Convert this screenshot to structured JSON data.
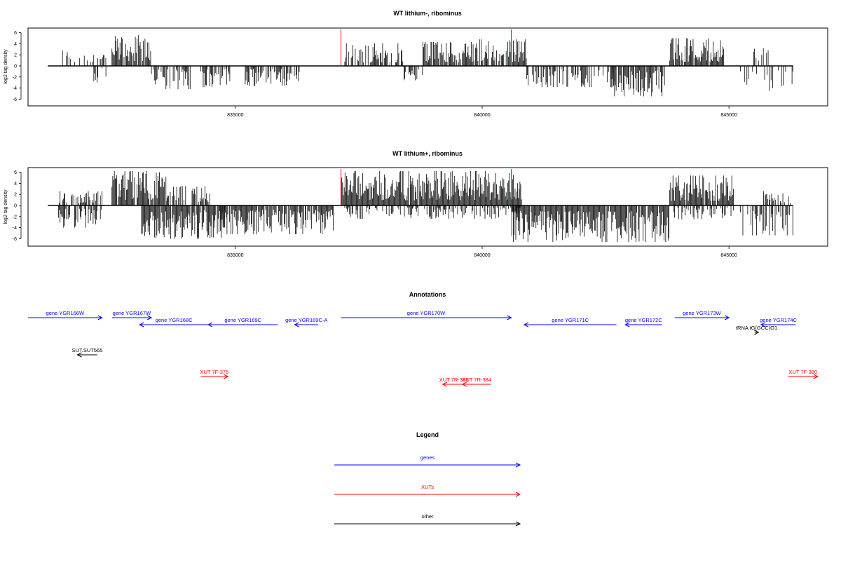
{
  "chart_data": [
    {
      "type": "bar",
      "title": "WT lithium-, ribominus",
      "ylabel": "log2 tag density",
      "xlim": [
        830800,
        847000
      ],
      "ylim": [
        -6.5,
        6.5
      ],
      "xticks": [
        "835000",
        "840000",
        "845000"
      ],
      "yticks": [
        "6",
        "4",
        "2",
        "0",
        "-2",
        "-4",
        "-6"
      ],
      "markers": [
        837140,
        840590
      ],
      "segments": [
        {
          "start": 831400,
          "end": 832000,
          "sign": 1,
          "max": 3.2,
          "density": 0.3
        },
        {
          "start": 832000,
          "end": 832400,
          "sign": 1,
          "max": 2.5,
          "density": 0.4
        },
        {
          "start": 832100,
          "end": 832400,
          "sign": -1,
          "max": 3.0,
          "density": 0.5
        },
        {
          "start": 832500,
          "end": 833300,
          "sign": 1,
          "max": 5.6,
          "density": 0.9
        },
        {
          "start": 833300,
          "end": 834100,
          "sign": -1,
          "max": 4.2,
          "density": 0.7
        },
        {
          "start": 834300,
          "end": 834900,
          "sign": -1,
          "max": 3.8,
          "density": 0.7
        },
        {
          "start": 835200,
          "end": 836300,
          "sign": -1,
          "max": 3.6,
          "density": 0.8
        },
        {
          "start": 837200,
          "end": 838400,
          "sign": 1,
          "max": 4.1,
          "density": 0.6
        },
        {
          "start": 838400,
          "end": 838800,
          "sign": -1,
          "max": 2.6,
          "density": 0.4
        },
        {
          "start": 838800,
          "end": 839800,
          "sign": 1,
          "max": 4.3,
          "density": 0.8
        },
        {
          "start": 839800,
          "end": 840900,
          "sign": 1,
          "max": 4.8,
          "density": 0.8
        },
        {
          "start": 840900,
          "end": 842700,
          "sign": -1,
          "max": 3.8,
          "density": 0.6
        },
        {
          "start": 842600,
          "end": 843700,
          "sign": -1,
          "max": 5.5,
          "density": 0.8
        },
        {
          "start": 843800,
          "end": 844900,
          "sign": 1,
          "max": 5.0,
          "density": 0.95
        },
        {
          "start": 845200,
          "end": 846300,
          "sign": -1,
          "max": 5.2,
          "density": 0.3
        },
        {
          "start": 845500,
          "end": 845800,
          "sign": 1,
          "max": 3.2,
          "density": 0.3
        }
      ]
    },
    {
      "type": "bar",
      "title": "WT lithium+, ribominus",
      "ylabel": "log2 tag density",
      "xlim": [
        830800,
        847000
      ],
      "ylim": [
        -6.5,
        6.5
      ],
      "xticks": [
        "835000",
        "840000",
        "845000"
      ],
      "yticks": [
        "6",
        "4",
        "2",
        "0",
        "-2",
        "-4",
        "-6"
      ],
      "markers": [
        837140,
        840590
      ],
      "segments": [
        {
          "start": 831400,
          "end": 832300,
          "sign": 1,
          "max": 2.6,
          "density": 0.6
        },
        {
          "start": 831400,
          "end": 832300,
          "sign": -1,
          "max": 4.0,
          "density": 0.7
        },
        {
          "start": 832500,
          "end": 833600,
          "sign": 1,
          "max": 6.2,
          "density": 0.95
        },
        {
          "start": 833600,
          "end": 834500,
          "sign": 1,
          "max": 3.5,
          "density": 0.6
        },
        {
          "start": 833100,
          "end": 834800,
          "sign": -1,
          "max": 6.0,
          "density": 0.95
        },
        {
          "start": 834700,
          "end": 837000,
          "sign": -1,
          "max": 5.2,
          "density": 0.9
        },
        {
          "start": 837140,
          "end": 840800,
          "sign": 1,
          "max": 6.2,
          "density": 0.98
        },
        {
          "start": 837200,
          "end": 840800,
          "sign": -1,
          "max": 2.4,
          "density": 0.5
        },
        {
          "start": 840600,
          "end": 843800,
          "sign": -1,
          "max": 6.6,
          "density": 0.95
        },
        {
          "start": 843800,
          "end": 845100,
          "sign": 1,
          "max": 5.4,
          "density": 0.95
        },
        {
          "start": 843800,
          "end": 845100,
          "sign": -1,
          "max": 2.5,
          "density": 0.5
        },
        {
          "start": 845200,
          "end": 846300,
          "sign": -1,
          "max": 5.4,
          "density": 0.6
        },
        {
          "start": 845700,
          "end": 846300,
          "sign": 1,
          "max": 2.8,
          "density": 0.4
        }
      ]
    }
  ],
  "annotations": {
    "title": "Annotations",
    "features": [
      {
        "label": "gene YGR166W",
        "start": 830800,
        "end": 832300,
        "strand": "+",
        "row": 0,
        "type": "gene"
      },
      {
        "label": "gene YGR167W",
        "start": 832500,
        "end": 833300,
        "strand": "+",
        "row": 0,
        "type": "gene"
      },
      {
        "label": "gene YGR168C",
        "start": 833060,
        "end": 834450,
        "strand": "-",
        "row": 1,
        "type": "gene"
      },
      {
        "label": "gene YGR169C",
        "start": 834450,
        "end": 835860,
        "strand": "-",
        "row": 1,
        "type": "gene"
      },
      {
        "label": "gene YGR169C-A",
        "start": 836200,
        "end": 836680,
        "strand": "-",
        "row": 1,
        "type": "gene"
      },
      {
        "label": "gene YGR170W",
        "start": 837140,
        "end": 840590,
        "strand": "+",
        "row": 0,
        "type": "gene"
      },
      {
        "label": "gene YGR171C",
        "start": 840850,
        "end": 842720,
        "strand": "-",
        "row": 1,
        "type": "gene"
      },
      {
        "label": "gene YGR172C",
        "start": 842900,
        "end": 843640,
        "strand": "-",
        "row": 1,
        "type": "gene"
      },
      {
        "label": "gene YGR173W",
        "start": 843900,
        "end": 845000,
        "strand": "+",
        "row": 0,
        "type": "gene"
      },
      {
        "label": "gene YGR174C",
        "start": 845650,
        "end": 846350,
        "strand": "-",
        "row": 1,
        "type": "gene"
      },
      {
        "label": "tRNA tG(GCC)G1",
        "start": 845520,
        "end": 845600,
        "strand": "+",
        "row": 2,
        "type": "other"
      },
      {
        "label": "SUT.SUT565",
        "start": 831800,
        "end": 832200,
        "strand": "-",
        "row": 3,
        "type": "other"
      },
      {
        "label": "XUT 7F-375",
        "start": 834300,
        "end": 834850,
        "strand": "+",
        "row": 5,
        "type": "xut"
      },
      {
        "label": "XUT 7R-383",
        "start": 839200,
        "end": 839650,
        "strand": "-",
        "row": 6,
        "type": "xut"
      },
      {
        "label": "XUT 7R-384",
        "start": 839600,
        "end": 840180,
        "strand": "-",
        "row": 6,
        "type": "xut"
      },
      {
        "label": "XUT 7F-380",
        "start": 846200,
        "end": 846800,
        "strand": "+",
        "row": 5,
        "type": "xut"
      }
    ]
  },
  "legend": {
    "title": "Legend",
    "items": [
      {
        "label": "genes",
        "color": "#0000ff"
      },
      {
        "label": "XUTs",
        "color": "#ff0000"
      },
      {
        "label": "other",
        "color": "#000000"
      }
    ]
  },
  "colors": {
    "gene": "#0000ff",
    "xut": "#ff0000",
    "other": "#000000",
    "marker": "#ff0000",
    "bar": "#000000"
  }
}
